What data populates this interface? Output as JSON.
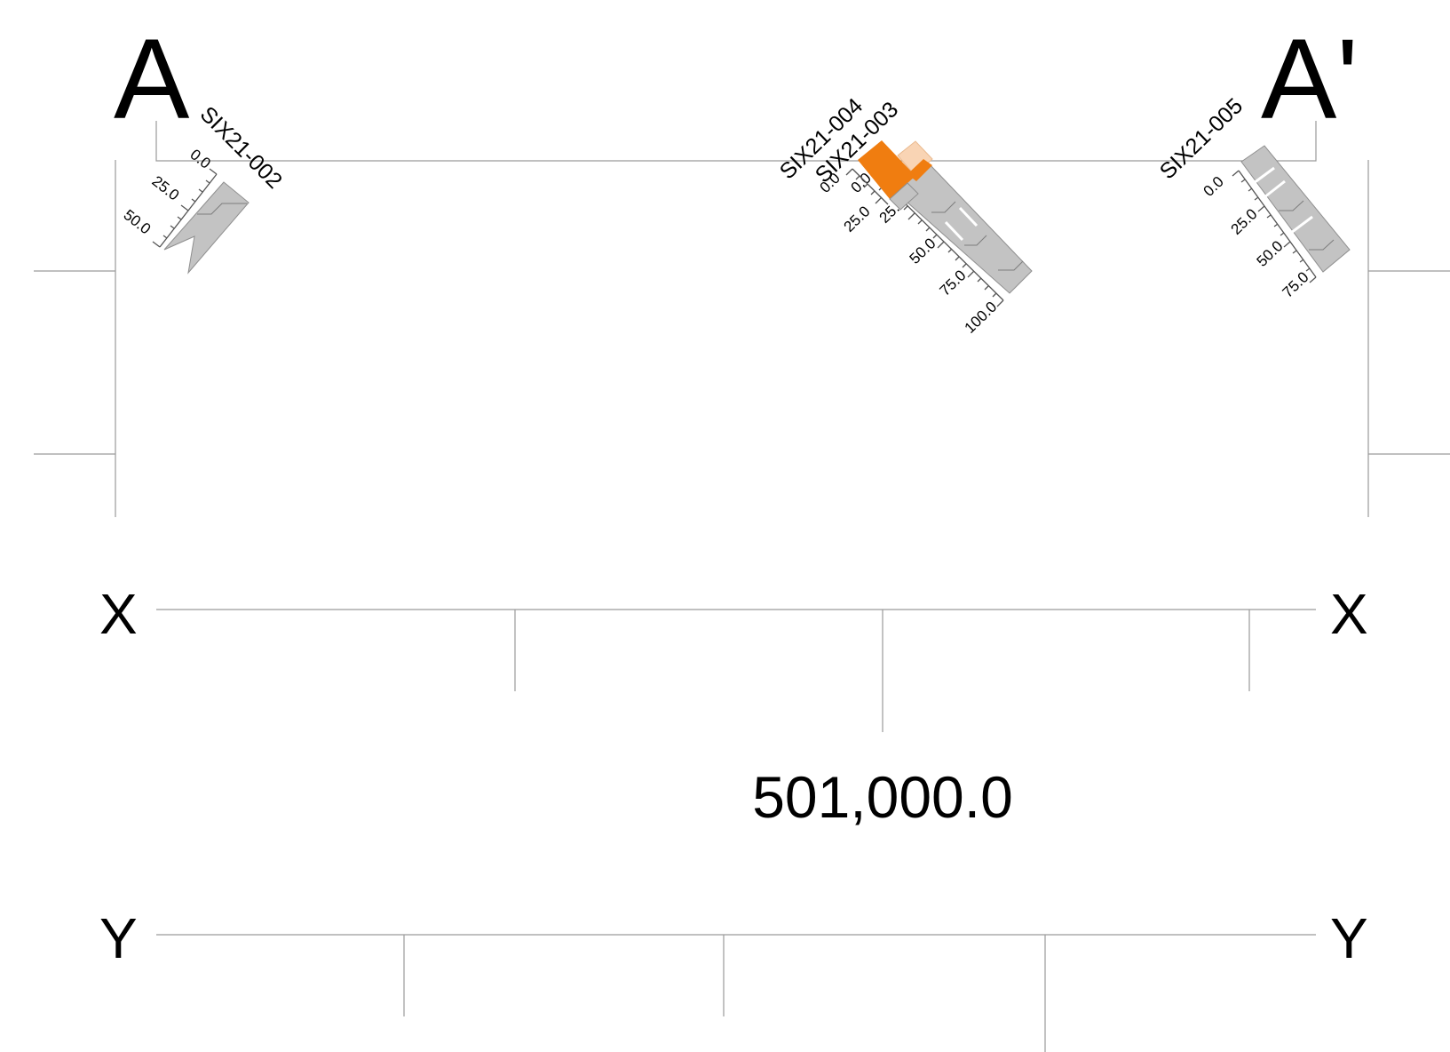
{
  "section": {
    "start_label": "A",
    "end_label": "A'"
  },
  "x_axis": {
    "left_label": "X",
    "right_label": "X"
  },
  "y_axis": {
    "left_label": "Y",
    "right_label": "Y"
  },
  "coordinate_label": "501,000.0",
  "boreholes": [
    {
      "id": "SIX21-002",
      "ticks": [
        "0.0",
        "25.0",
        "50.0"
      ]
    },
    {
      "id": "SIX21-004",
      "ticks": [
        "0.0",
        "25.0"
      ],
      "color": "#f07d10"
    },
    {
      "id": "SIX21-003",
      "ticks": [
        "0.0",
        "25.0",
        "50.0",
        "75.0",
        "100.0"
      ],
      "color": "#f9d4b4"
    },
    {
      "id": "SIX21-005",
      "ticks": [
        "0.0",
        "25.0",
        "50.0",
        "75.0"
      ]
    }
  ],
  "colors": {
    "interval_gray": "#c3c3c3",
    "highlight_orange": "#f07d10",
    "highlight_light": "#f9d4b4",
    "grid_line": "#9a9a9a"
  }
}
